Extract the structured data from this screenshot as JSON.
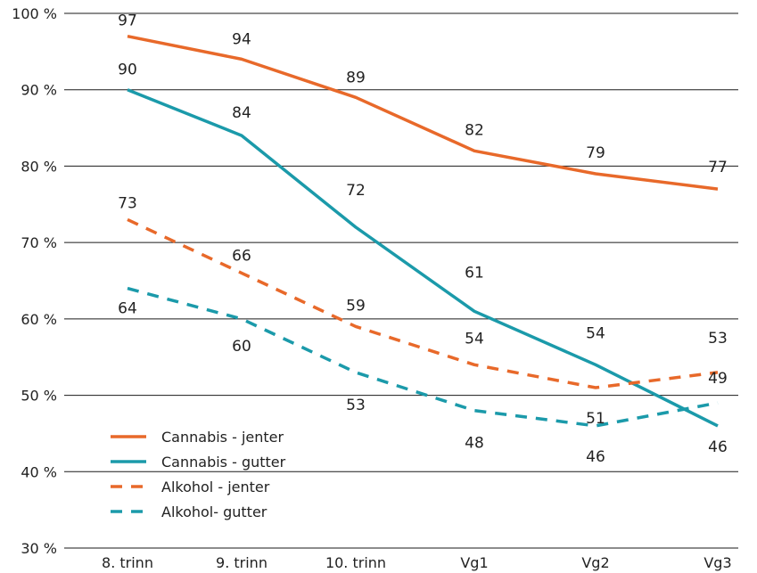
{
  "chart_data": {
    "type": "line",
    "categories": [
      "8. trinn",
      "9. trinn",
      "10. trinn",
      "Vg1",
      "Vg2",
      "Vg3"
    ],
    "ylim": [
      30,
      100
    ],
    "yticks": [
      "30 %",
      "40 %",
      "50 %",
      "60 %",
      "70 %",
      "80 %",
      "90 %",
      "100 %"
    ],
    "grid": true,
    "legend_position": "bottom-left",
    "series": [
      {
        "name": "Cannabis - jenter",
        "values": [
          97,
          94,
          89,
          82,
          79,
          77
        ],
        "labels": [
          "97",
          "94",
          "89",
          "82",
          "79",
          "77"
        ],
        "color": "#e8692a",
        "dash": false
      },
      {
        "name": "Cannabis - gutter",
        "values": [
          90,
          84,
          72,
          61,
          54,
          46
        ],
        "labels": [
          "90",
          "84",
          "72",
          "61",
          "54",
          "46"
        ],
        "color": "#1b9aaa",
        "dash": false
      },
      {
        "name": "Alkohol - jenter",
        "values": [
          73,
          66,
          59,
          54,
          51,
          53
        ],
        "labels": [
          "73",
          "66",
          "59",
          "54",
          "51",
          "53"
        ],
        "color": "#e8692a",
        "dash": true
      },
      {
        "name": "Alkohol- gutter",
        "values": [
          64,
          60,
          53,
          48,
          46,
          49
        ],
        "labels": [
          "64",
          "60",
          "53",
          "48",
          "46",
          "49"
        ],
        "color": "#1b9aaa",
        "dash": true
      }
    ]
  }
}
